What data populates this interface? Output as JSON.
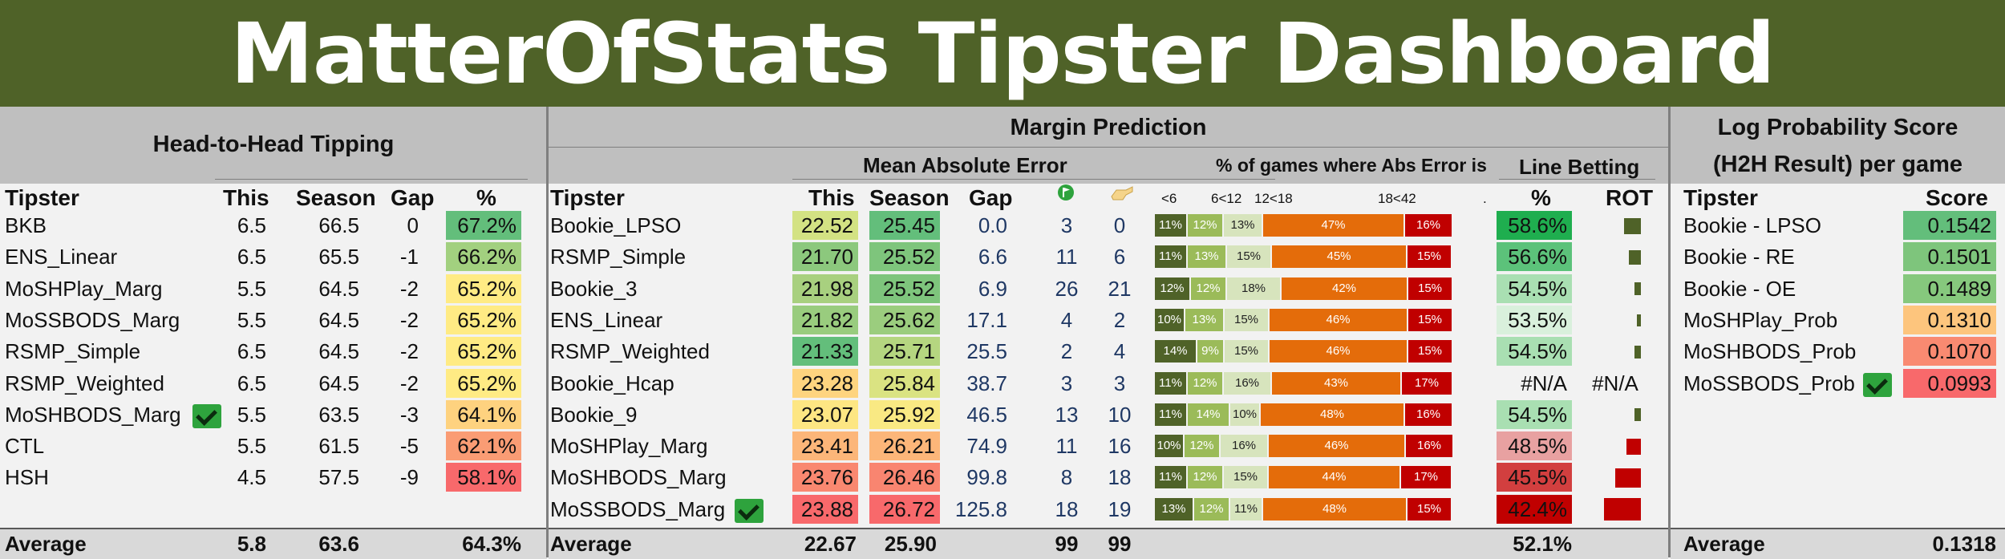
{
  "title": "MatterOfStats Tipster Dashboard",
  "h2h": {
    "title": "Head-to-Head Tipping",
    "headers": {
      "tipster": "Tipster",
      "this": "This",
      "season": "Season",
      "gap": "Gap",
      "pct": "%"
    },
    "rows": [
      {
        "tipster": "BKB",
        "this": "6.5",
        "season": "66.5",
        "gap": "0",
        "pct": "67.2%",
        "color": "#63be7b",
        "check": false
      },
      {
        "tipster": "ENS_Linear",
        "this": "6.5",
        "season": "65.5",
        "gap": "-1",
        "pct": "66.2%",
        "color": "#a2d07f",
        "check": false
      },
      {
        "tipster": "MoSHPlay_Marg",
        "this": "5.5",
        "season": "64.5",
        "gap": "-2",
        "pct": "65.2%",
        "color": "#ffeb84",
        "check": false
      },
      {
        "tipster": "MoSSBODS_Marg",
        "this": "5.5",
        "season": "64.5",
        "gap": "-2",
        "pct": "65.2%",
        "color": "#ffeb84",
        "check": false
      },
      {
        "tipster": "RSMP_Simple",
        "this": "6.5",
        "season": "64.5",
        "gap": "-2",
        "pct": "65.2%",
        "color": "#ffeb84",
        "check": false
      },
      {
        "tipster": "RSMP_Weighted",
        "this": "6.5",
        "season": "64.5",
        "gap": "-2",
        "pct": "65.2%",
        "color": "#ffeb84",
        "check": false
      },
      {
        "tipster": "MoSHBODS_Marg",
        "this": "5.5",
        "season": "63.5",
        "gap": "-3",
        "pct": "64.1%",
        "color": "#fed27f",
        "check": true
      },
      {
        "tipster": "CTL",
        "this": "5.5",
        "season": "61.5",
        "gap": "-5",
        "pct": "62.1%",
        "color": "#fa9c74",
        "check": false
      },
      {
        "tipster": "HSH",
        "this": "4.5",
        "season": "57.5",
        "gap": "-9",
        "pct": "58.1%",
        "color": "#f8696b",
        "check": false
      }
    ],
    "average": {
      "label": "Average",
      "this": "5.8",
      "season": "63.6",
      "pct": "64.3%"
    }
  },
  "margin": {
    "title": "Margin Prediction",
    "mae_title": "Mean Absolute Error",
    "abs_title": "% of games where Abs Error is",
    "line_title": "Line Betting",
    "headers": {
      "tipster": "Tipster",
      "this": "This",
      "season": "Season",
      "gap": "Gap",
      "pct": "%",
      "rot": "ROT"
    },
    "icons": {
      "icon1": "green-flag-icon",
      "icon2": "hand-pointer-icon"
    },
    "bucket_labels": [
      "<6",
      "6<12",
      "12<18",
      "18<42",
      "."
    ],
    "rows": [
      {
        "tipster": "Bookie_LPSO",
        "this": "22.52",
        "this_color": "#d3e283",
        "season": "25.45",
        "season_color": "#63be7b",
        "gap": "0.0",
        "c1": "3",
        "c2": "0",
        "buckets": [
          "11%",
          "12%",
          "13%",
          "47%",
          "16%"
        ],
        "bucket_vals": [
          11,
          12,
          13,
          47,
          16
        ],
        "line_pct": "58.6%",
        "line_color": "#1fae4f",
        "rot": 0.32,
        "check": false
      },
      {
        "tipster": "RSMP_Simple",
        "this": "21.70",
        "this_color": "#8cc87d",
        "season": "25.52",
        "season_color": "#7ec57c",
        "gap": "6.6",
        "c1": "11",
        "c2": "6",
        "buckets": [
          "11%",
          "13%",
          "15%",
          "45%",
          "15%"
        ],
        "bucket_vals": [
          11,
          13,
          15,
          45,
          15
        ],
        "line_pct": "56.6%",
        "line_color": "#5cc27a",
        "rot": 0.22,
        "check": false
      },
      {
        "tipster": "Bookie_3",
        "this": "21.98",
        "this_color": "#a8d07f",
        "season": "25.52",
        "season_color": "#7ec57c",
        "gap": "6.9",
        "c1": "26",
        "c2": "21",
        "buckets": [
          "12%",
          "12%",
          "18%",
          "42%",
          "15%"
        ],
        "bucket_vals": [
          12,
          12,
          18,
          42,
          15
        ],
        "line_pct": "54.5%",
        "line_color": "#a9dfb2",
        "rot": 0.12,
        "check": false
      },
      {
        "tipster": "ENS_Linear",
        "this": "21.82",
        "this_color": "#99cc7e",
        "season": "25.62",
        "season_color": "#9bcd7e",
        "gap": "17.1",
        "c1": "4",
        "c2": "2",
        "buckets": [
          "10%",
          "13%",
          "15%",
          "46%",
          "15%"
        ],
        "bucket_vals": [
          10,
          13,
          15,
          46,
          15
        ],
        "line_pct": "53.5%",
        "line_color": "#d9f0dc",
        "rot": 0.07,
        "check": false
      },
      {
        "tipster": "RSMP_Weighted",
        "this": "21.33",
        "this_color": "#63be7b",
        "season": "25.71",
        "season_color": "#b5d680",
        "gap": "25.5",
        "c1": "2",
        "c2": "4",
        "buckets": [
          "14%",
          "9%",
          "15%",
          "46%",
          "15%"
        ],
        "bucket_vals": [
          14,
          9,
          15,
          46,
          15
        ],
        "line_pct": "54.5%",
        "line_color": "#a9dfb2",
        "rot": 0.12,
        "check": false
      },
      {
        "tipster": "Bookie_Hcap",
        "this": "23.28",
        "this_color": "#fed47f",
        "season": "25.84",
        "season_color": "#dae382",
        "gap": "38.7",
        "c1": "3",
        "c2": "3",
        "buckets": [
          "11%",
          "12%",
          "16%",
          "43%",
          "17%"
        ],
        "bucket_vals": [
          11,
          12,
          16,
          43,
          17
        ],
        "line_pct": "#N/A",
        "line_color": "",
        "rot_text": "#N/A",
        "rot": 0,
        "check": false
      },
      {
        "tipster": "Bookie_9",
        "this": "23.07",
        "this_color": "#fde683",
        "season": "25.92",
        "season_color": "#f9e983",
        "gap": "46.5",
        "c1": "13",
        "c2": "10",
        "buckets": [
          "11%",
          "14%",
          "10%",
          "48%",
          "16%"
        ],
        "bucket_vals": [
          11,
          14,
          10,
          48,
          16
        ],
        "line_pct": "54.5%",
        "line_color": "#a9dfb2",
        "rot": 0.12,
        "check": false
      },
      {
        "tipster": "MoSHPlay_Marg",
        "this": "23.41",
        "this_color": "#fcb679",
        "season": "26.21",
        "season_color": "#fcb679",
        "gap": "74.9",
        "c1": "11",
        "c2": "16",
        "buckets": [
          "10%",
          "12%",
          "16%",
          "46%",
          "16%"
        ],
        "bucket_vals": [
          10,
          12,
          16,
          46,
          16
        ],
        "line_pct": "48.5%",
        "line_color": "#e8a1a1",
        "rot": -0.28,
        "check": false
      },
      {
        "tipster": "MoSHBODS_Marg",
        "this": "23.76",
        "this_color": "#f98870",
        "season": "26.46",
        "season_color": "#f98570",
        "gap": "99.8",
        "c1": "8",
        "c2": "18",
        "buckets": [
          "11%",
          "12%",
          "15%",
          "44%",
          "17%"
        ],
        "bucket_vals": [
          11,
          12,
          15,
          44,
          17
        ],
        "line_pct": "45.5%",
        "line_color": "#d23f3f",
        "rot": -0.48,
        "check": false
      },
      {
        "tipster": "MoSSBODS_Marg",
        "this": "23.88",
        "this_color": "#f8696b",
        "season": "26.72",
        "season_color": "#f8696b",
        "gap": "125.8",
        "c1": "18",
        "c2": "19",
        "buckets": [
          "13%",
          "12%",
          "11%",
          "48%",
          "15%"
        ],
        "bucket_vals": [
          13,
          12,
          11,
          48,
          15
        ],
        "line_pct": "42.4%",
        "line_color": "#c00000",
        "rot": -0.7,
        "check": true
      }
    ],
    "average": {
      "label": "Average",
      "this": "22.67",
      "season": "25.90",
      "c1": "99",
      "c2": "99",
      "line_pct": "52.1%"
    }
  },
  "logprob": {
    "title_1": "Log Probability Score",
    "title_2": "(H2H Result) per game",
    "headers": {
      "tipster": "Tipster",
      "score": "Score"
    },
    "rows": [
      {
        "tipster": "Bookie - LPSO",
        "score": "0.1542",
        "color": "#63be7b",
        "check": false
      },
      {
        "tipster": "Bookie - RE",
        "score": "0.1501",
        "color": "#7ec57c",
        "check": false
      },
      {
        "tipster": "Bookie - OE",
        "score": "0.1489",
        "color": "#86c87d",
        "check": false
      },
      {
        "tipster": "MoSHPlay_Prob",
        "score": "0.1310",
        "color": "#fdc57d",
        "check": false
      },
      {
        "tipster": "MoSHBODS_Prob",
        "score": "0.1070",
        "color": "#f98a71",
        "check": false
      },
      {
        "tipster": "MoSSBODS_Prob",
        "score": "0.0993",
        "color": "#f8696b",
        "check": true
      }
    ],
    "average": {
      "label": "Average",
      "score": "0.1318"
    }
  },
  "bucket_colors": [
    "#4f6228",
    "#9bbb59",
    "#d7e4bd",
    "#e46c0a",
    "#c00000"
  ]
}
